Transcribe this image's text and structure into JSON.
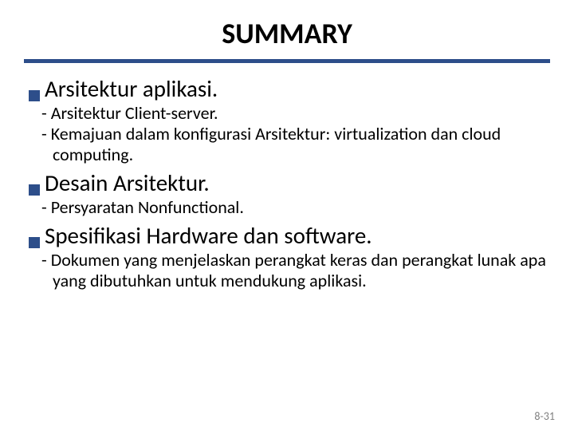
{
  "title": "SUMMARY",
  "accent_color": "#2d4e8a",
  "text_color": "#000000",
  "footer_color": "#808080",
  "sections": {
    "s0": {
      "head": "Arsitektur aplikasi.",
      "sub0": "- Arsitektur Client-server.",
      "sub1": "- Kemajuan dalam konfigurasi Arsitektur: virtualization dan cloud computing."
    },
    "s1": {
      "head": "Desain Arsitektur.",
      "sub0": "- Persyaratan Nonfunctional."
    },
    "s2": {
      "head": "Spesifikasi Hardware dan software.",
      "sub0": "- Dokumen yang menjelaskan perangkat keras dan perangkat lunak apa yang dibutuhkan untuk mendukung aplikasi."
    }
  },
  "footer": "8-31"
}
